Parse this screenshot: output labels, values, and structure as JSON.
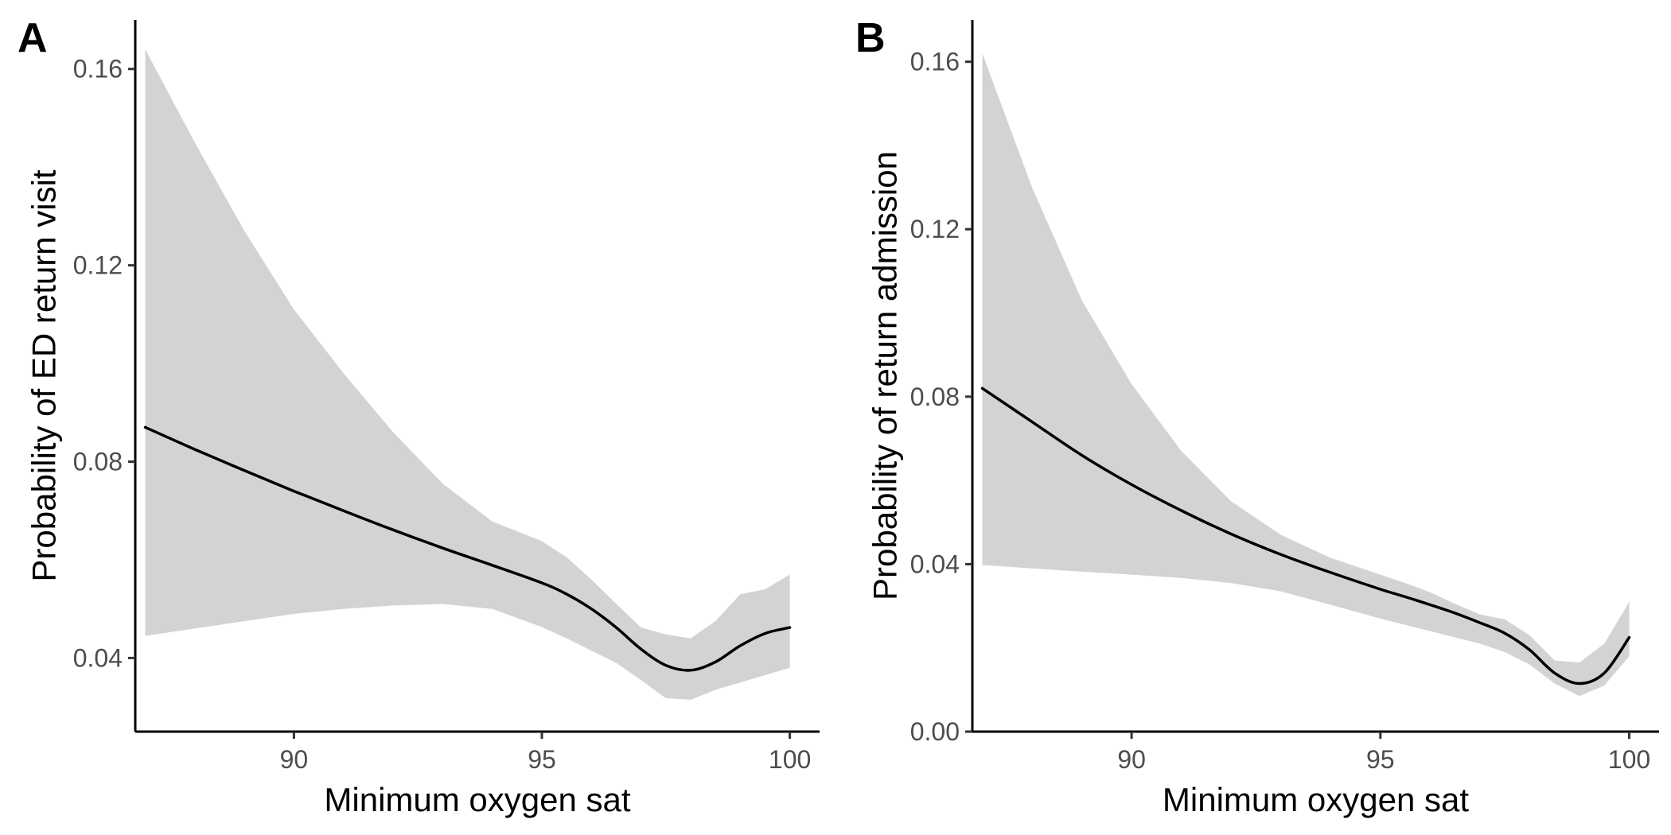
{
  "figure": {
    "colors": {
      "band": "#d3d3d3",
      "line": "#000000",
      "axis": "#000000"
    }
  },
  "chart_data": [
    {
      "type": "line",
      "panel_label": "A",
      "xlabel": "Minimum oxygen sat",
      "ylabel": "Probability of ED return visit",
      "xlim": [
        86.8,
        100.6
      ],
      "ylim": [
        0.025,
        0.17
      ],
      "xticks": [
        90,
        95,
        100
      ],
      "xtick_labels": [
        "90",
        "95",
        "100"
      ],
      "yticks": [
        0.04,
        0.08,
        0.12,
        0.16
      ],
      "ytick_labels": [
        "0.04",
        "0.08",
        "0.12",
        "0.16"
      ],
      "grid": false,
      "series": [
        {
          "x": [
            87.0,
            88.0,
            89.0,
            90.0,
            91.0,
            92.0,
            93.0,
            94.0,
            95.0,
            95.5,
            96.0,
            96.5,
            97.0,
            97.5,
            98.0,
            98.5,
            99.0,
            99.5,
            100.0
          ],
          "y": [
            0.087,
            0.0825,
            0.0782,
            0.074,
            0.07,
            0.0661,
            0.0624,
            0.0589,
            0.0553,
            0.053,
            0.05,
            0.0462,
            0.0418,
            0.0385,
            0.0375,
            0.0392,
            0.0425,
            0.045,
            0.0462
          ],
          "lower": [
            0.0445,
            0.046,
            0.0475,
            0.049,
            0.05,
            0.0507,
            0.051,
            0.05,
            0.0463,
            0.044,
            0.0415,
            0.039,
            0.0355,
            0.0318,
            0.0315,
            0.0335,
            0.035,
            0.0365,
            0.038
          ],
          "upper": [
            0.164,
            0.145,
            0.127,
            0.111,
            0.098,
            0.086,
            0.0755,
            0.0678,
            0.0638,
            0.0605,
            0.056,
            0.051,
            0.0462,
            0.0448,
            0.044,
            0.0475,
            0.053,
            0.054,
            0.057
          ]
        }
      ]
    },
    {
      "type": "line",
      "panel_label": "B",
      "xlabel": "Minimum oxygen sat",
      "ylabel": "Probability of return admission",
      "xlim": [
        86.8,
        100.6
      ],
      "ylim": [
        0.0,
        0.17
      ],
      "xticks": [
        90,
        95,
        100
      ],
      "xtick_labels": [
        "90",
        "95",
        "100"
      ],
      "yticks": [
        0.0,
        0.04,
        0.08,
        0.12,
        0.16
      ],
      "ytick_labels": [
        "0.00",
        "0.04",
        "0.08",
        "0.12",
        "0.16"
      ],
      "grid": false,
      "series": [
        {
          "x": [
            87.0,
            88.0,
            89.0,
            90.0,
            91.0,
            92.0,
            93.0,
            94.0,
            95.0,
            95.5,
            96.0,
            96.5,
            97.0,
            97.5,
            98.0,
            98.5,
            99.0,
            99.5,
            100.0
          ],
          "y": [
            0.082,
            0.074,
            0.066,
            0.059,
            0.0528,
            0.0472,
            0.0423,
            0.038,
            0.034,
            0.0322,
            0.0303,
            0.0283,
            0.026,
            0.0235,
            0.0195,
            0.014,
            0.0115,
            0.014,
            0.0225
          ],
          "lower": [
            0.0398,
            0.039,
            0.0382,
            0.0375,
            0.0367,
            0.0355,
            0.0335,
            0.0303,
            0.027,
            0.0255,
            0.024,
            0.0225,
            0.021,
            0.019,
            0.016,
            0.0115,
            0.0085,
            0.011,
            0.018
          ],
          "upper": [
            0.162,
            0.13,
            0.103,
            0.083,
            0.067,
            0.055,
            0.047,
            0.0415,
            0.0375,
            0.0355,
            0.0333,
            0.0305,
            0.028,
            0.0268,
            0.023,
            0.017,
            0.0165,
            0.021,
            0.031
          ]
        }
      ]
    }
  ]
}
